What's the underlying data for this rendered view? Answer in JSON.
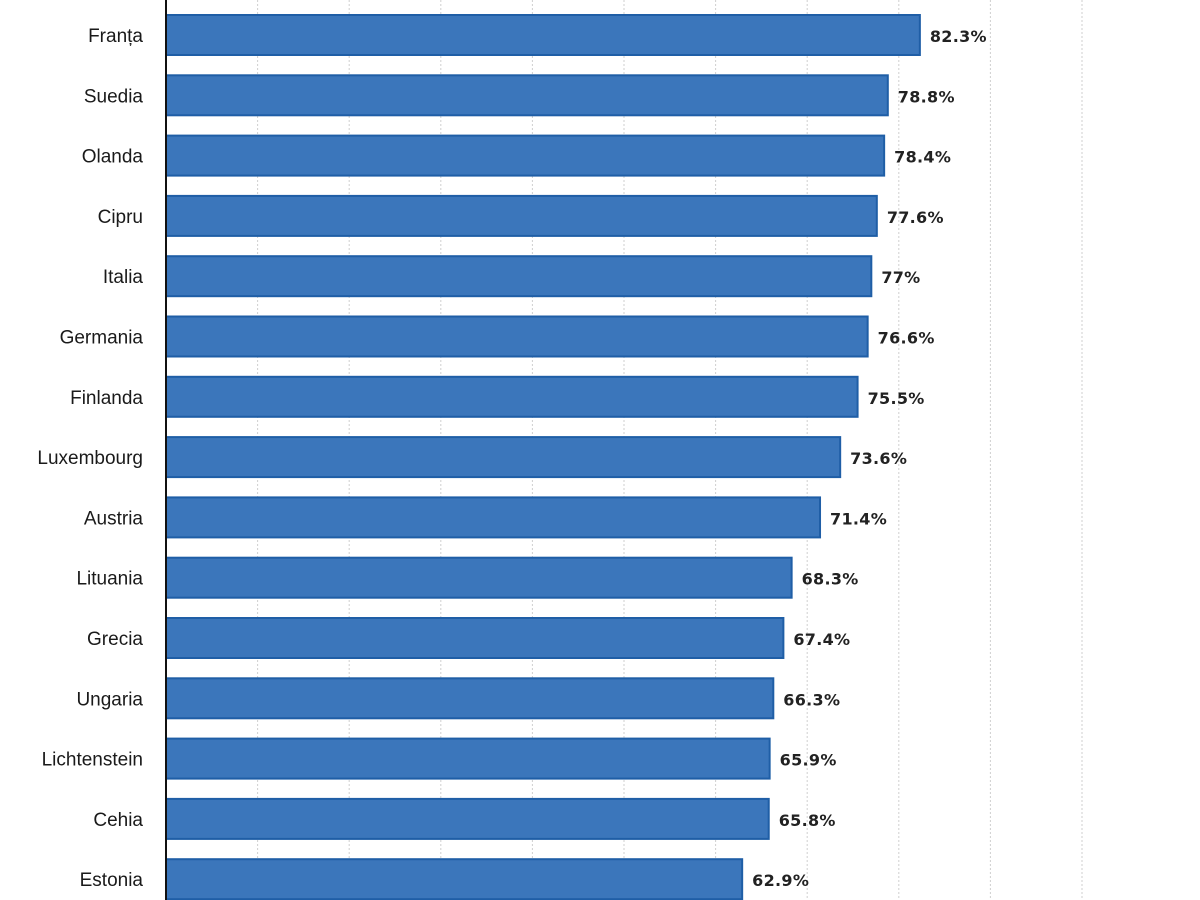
{
  "chart_data": {
    "type": "bar",
    "orientation": "horizontal",
    "categories": [
      "Franța",
      "Suedia",
      "Olanda",
      "Cipru",
      "Italia",
      "Germania",
      "Finlanda",
      "Luxembourg",
      "Austria",
      "Lituania",
      "Grecia",
      "Ungaria",
      "Lichtenstein",
      "Cehia",
      "Estonia"
    ],
    "values": [
      82.3,
      78.8,
      78.4,
      77.6,
      77,
      76.6,
      75.5,
      73.6,
      71.4,
      68.3,
      67.4,
      66.3,
      65.9,
      65.8,
      62.9
    ],
    "value_labels": [
      "82.3%",
      "78.8%",
      "78.4%",
      "77.6%",
      "77%",
      "76.6%",
      "75.5%",
      "73.6%",
      "71.4%",
      "68.3%",
      "67.4%",
      "66.3%",
      "65.9%",
      "65.8%",
      "62.9%"
    ],
    "xlim": [
      0,
      100
    ],
    "grid": true,
    "grid_step": 10,
    "bar_color": "#3b76bb",
    "bar_border_color": "#1f5ea6"
  }
}
